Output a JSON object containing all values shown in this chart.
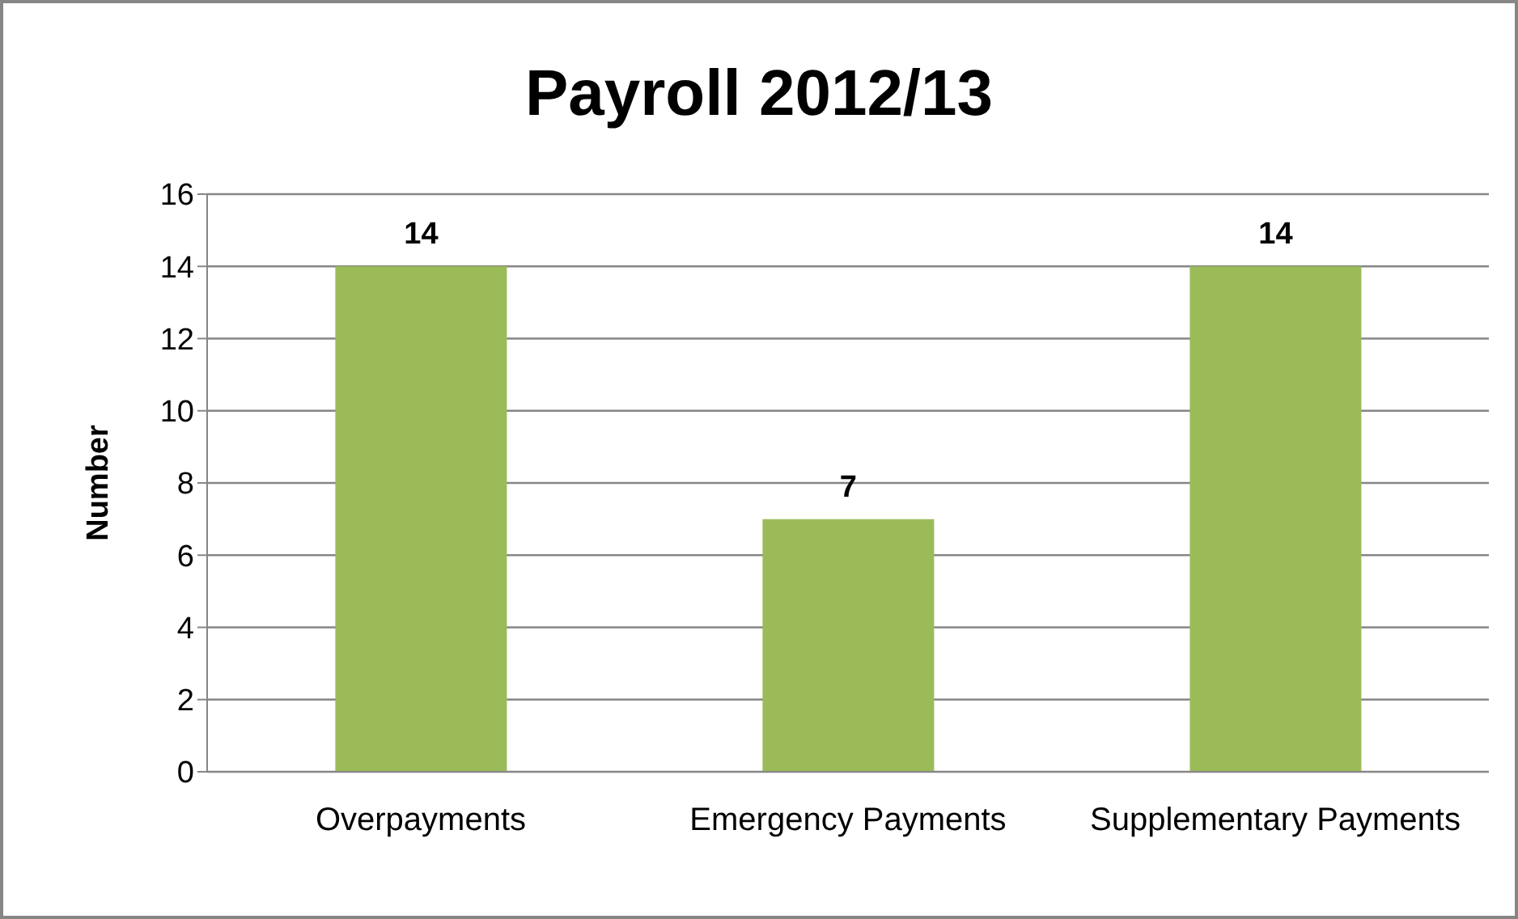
{
  "chart_data": {
    "type": "bar",
    "title": "Payroll 2012/13",
    "ylabel": "Number",
    "categories": [
      "Overpayments",
      "Emergency Payments",
      "Supplementary Payments"
    ],
    "values": [
      14,
      7,
      14
    ],
    "color": "#9bbb59",
    "ylim": [
      0,
      16
    ],
    "yticks": [
      0,
      2,
      4,
      6,
      8,
      10,
      12,
      14,
      16
    ],
    "grid": "y",
    "data_labels": true
  }
}
